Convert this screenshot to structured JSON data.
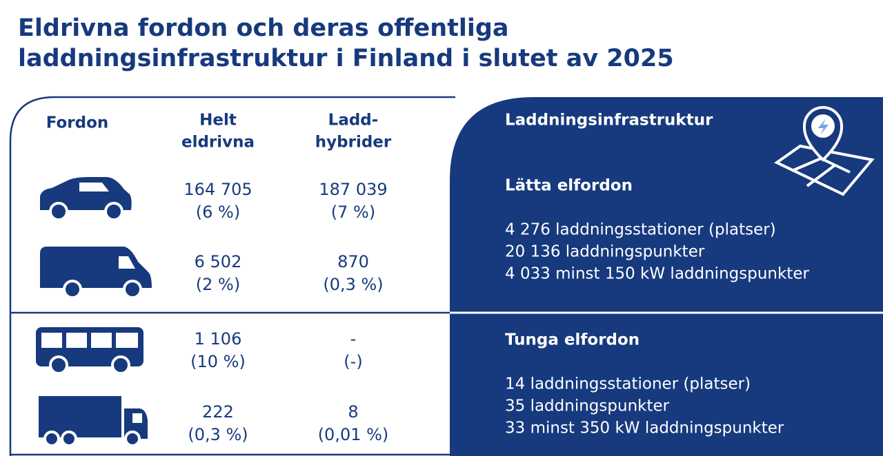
{
  "header": {
    "title_lines": [
      "Eldrivna fordon och deras offentliga",
      "laddningsinfrastruktur i Finland i slutet av 2025"
    ]
  },
  "table": {
    "columns": [
      [
        "Fordon"
      ],
      [
        "Helt",
        "eldrivna"
      ],
      [
        "Ladd-",
        "hybrider"
      ]
    ],
    "rows": [
      [
        [
          "164 705",
          "(6 %)"
        ],
        [
          "187 039",
          "(7 %)"
        ]
      ],
      [
        [
          "6 502",
          "(2 %)"
        ],
        [
          "870",
          "(0,3 %)"
        ]
      ],
      [
        [
          "1 106",
          "(10 %)"
        ],
        [
          "-",
          "(-)"
        ]
      ],
      [
        [
          "222",
          "(0,3 %)"
        ],
        [
          "8",
          "(0,01 %)"
        ]
      ]
    ]
  },
  "infrastructure": {
    "title": "Laddningsinfrastruktur",
    "sections": [
      {
        "heading": "Lätta elfordon",
        "lines": [
          "4 276 laddningsstationer (platser)",
          "20 136 laddningspunkter",
          "4 033 minst 150 kW laddningspunkter"
        ]
      },
      {
        "heading": "Tunga elfordon",
        "lines": [
          "14 laddningsstationer (platser)",
          "35 laddningspunkter",
          "33 minst 350 kW laddningspunkter"
        ]
      }
    ]
  }
}
